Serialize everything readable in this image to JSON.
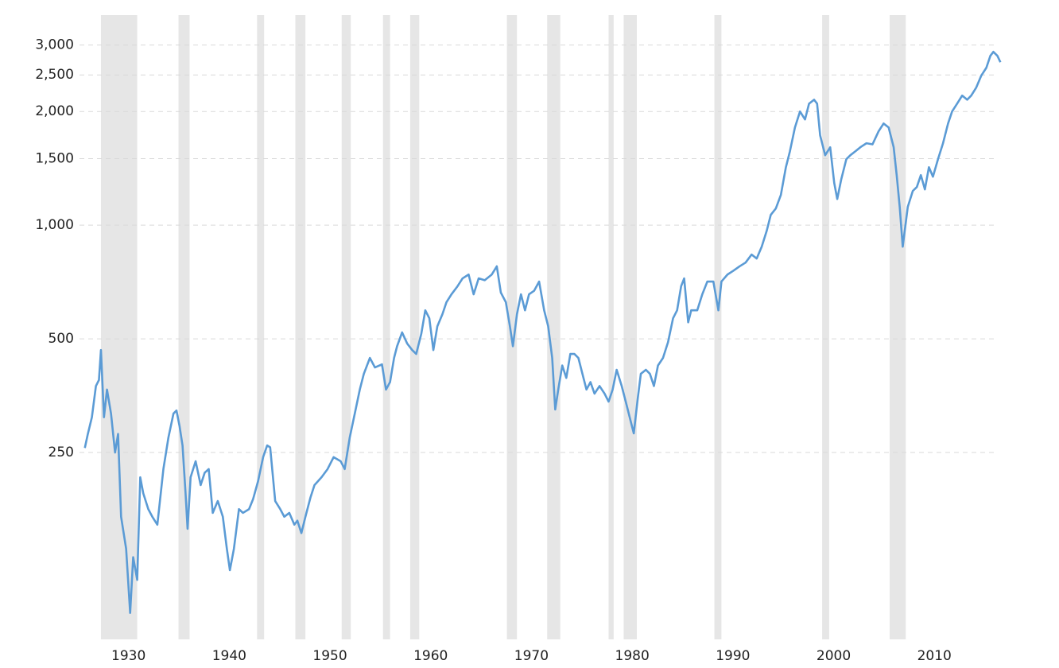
{
  "chart_data": {
    "type": "line",
    "log_scale": true,
    "grid": true,
    "color": "#5b9bd5",
    "band_color": "#e6e6e6",
    "xlim": [
      1928,
      2019
    ],
    "xticks": [
      1930,
      1940,
      1950,
      1960,
      1970,
      1980,
      1990,
      2000,
      2010
    ],
    "ylim": [
      80,
      3600
    ],
    "yticks": [
      250,
      500,
      {
        "value": 1000,
        "label": "1,000"
      },
      {
        "value": 1500,
        "label": "1,500"
      },
      {
        "value": 2000,
        "label": "2,000"
      },
      {
        "value": 2500,
        "label": "2,500"
      },
      {
        "value": 3000,
        "label": "3,000"
      }
    ],
    "recession_bands": [
      [
        1929.6,
        1933.2
      ],
      [
        1937.3,
        1938.4
      ],
      [
        1945.1,
        1945.8
      ],
      [
        1948.9,
        1949.9
      ],
      [
        1953.5,
        1954.4
      ],
      [
        1957.6,
        1958.3
      ],
      [
        1960.3,
        1961.2
      ],
      [
        1969.9,
        1970.9
      ],
      [
        1973.9,
        1975.2
      ],
      [
        1980.0,
        1980.5
      ],
      [
        1981.5,
        1982.8
      ],
      [
        1990.5,
        1991.2
      ],
      [
        2001.2,
        2001.9
      ],
      [
        2007.9,
        2009.5
      ]
    ],
    "x": [
      1928.0,
      1928.3,
      1928.7,
      1929.1,
      1929.4,
      1929.6,
      1929.9,
      1930.2,
      1930.6,
      1931.0,
      1931.3,
      1931.6,
      1932.1,
      1932.5,
      1932.8,
      1933.2,
      1933.5,
      1933.8,
      1934.3,
      1934.7,
      1935.2,
      1935.8,
      1936.3,
      1936.8,
      1937.1,
      1937.4,
      1937.7,
      1938.0,
      1938.2,
      1938.5,
      1939.0,
      1939.5,
      1939.9,
      1940.3,
      1940.7,
      1941.2,
      1941.7,
      1942.1,
      1942.4,
      1942.8,
      1943.3,
      1943.7,
      1944.3,
      1944.7,
      1945.2,
      1945.7,
      1946.1,
      1946.4,
      1946.9,
      1947.4,
      1947.8,
      1948.3,
      1948.8,
      1949.1,
      1949.5,
      1949.9,
      1950.4,
      1950.8,
      1951.5,
      1952.1,
      1952.7,
      1953.4,
      1953.8,
      1954.3,
      1954.8,
      1955.3,
      1955.7,
      1956.3,
      1956.8,
      1957.5,
      1957.9,
      1958.3,
      1958.7,
      1959.0,
      1959.5,
      1960.0,
      1960.5,
      1960.9,
      1961.4,
      1961.8,
      1962.2,
      1962.6,
      1963.0,
      1963.5,
      1963.9,
      1964.4,
      1965.0,
      1965.5,
      1966.1,
      1966.6,
      1967.1,
      1967.7,
      1968.4,
      1968.9,
      1969.3,
      1969.8,
      1970.2,
      1970.5,
      1970.9,
      1971.3,
      1971.7,
      1972.1,
      1972.6,
      1973.1,
      1973.6,
      1974.0,
      1974.4,
      1974.7,
      1975.0,
      1975.4,
      1975.8,
      1976.2,
      1976.6,
      1977.0,
      1977.4,
      1977.8,
      1978.2,
      1978.6,
      1979.1,
      1979.6,
      1980.0,
      1980.4,
      1980.8,
      1981.3,
      1981.8,
      1982.2,
      1982.5,
      1982.9,
      1983.2,
      1983.7,
      1984.1,
      1984.5,
      1984.9,
      1985.4,
      1985.9,
      1986.4,
      1986.8,
      1987.2,
      1987.5,
      1987.9,
      1988.2,
      1988.8,
      1989.3,
      1989.8,
      1990.4,
      1990.9,
      1991.2,
      1991.8,
      1992.4,
      1993.0,
      1993.6,
      1994.2,
      1994.7,
      1995.2,
      1995.7,
      1996.1,
      1996.6,
      1997.1,
      1997.6,
      1998.0,
      1998.5,
      1999.0,
      1999.5,
      1999.9,
      2000.4,
      2000.7,
      2001.0,
      2001.5,
      2002.0,
      2002.4,
      2002.7,
      2003.1,
      2003.6,
      2004.0,
      2004.5,
      2005.0,
      2005.6,
      2006.2,
      2006.8,
      2007.3,
      2007.8,
      2008.3,
      2008.6,
      2008.9,
      2009.2,
      2009.4,
      2009.7,
      2010.2,
      2010.6,
      2011.0,
      2011.4,
      2011.8,
      2012.2,
      2012.7,
      2013.2,
      2013.7,
      2014.1,
      2014.6,
      2015.1,
      2015.6,
      2016.0,
      2016.5,
      2017.0,
      2017.5,
      2017.9,
      2018.2,
      2018.6,
      2018.9
    ],
    "values": [
      257,
      280,
      310,
      375,
      389,
      467,
      310,
      367,
      317,
      250,
      280,
      169,
      139,
      94,
      132,
      115,
      215,
      195,
      177,
      169,
      161,
      226,
      274,
      317,
      323,
      294,
      261,
      195,
      157,
      215,
      237,
      205,
      221,
      226,
      173,
      186,
      169,
      139,
      122,
      139,
      177,
      173,
      177,
      188,
      210,
      243,
      261,
      258,
      186,
      177,
      169,
      173,
      161,
      165,
      153,
      169,
      190,
      205,
      215,
      226,
      243,
      237,
      226,
      274,
      317,
      367,
      404,
      445,
      420,
      428,
      367,
      384,
      445,
      478,
      520,
      486,
      467,
      456,
      515,
      595,
      567,
      467,
      540,
      581,
      625,
      656,
      689,
      723,
      740,
      656,
      723,
      715,
      740,
      778,
      663,
      625,
      540,
      478,
      581,
      656,
      595,
      656,
      670,
      709,
      595,
      540,
      445,
      325,
      367,
      425,
      394,
      456,
      456,
      445,
      404,
      367,
      384,
      358,
      375,
      358,
      341,
      367,
      414,
      375,
      333,
      302,
      281,
      349,
      404,
      414,
      404,
      375,
      425,
      445,
      490,
      567,
      595,
      689,
      723,
      553,
      595,
      595,
      656,
      709,
      709,
      595,
      709,
      740,
      758,
      778,
      796,
      836,
      816,
      877,
      967,
      1065,
      1107,
      1202,
      1424,
      1569,
      1815,
      2000,
      1906,
      2098,
      2149,
      2098,
      1729,
      1532,
      1608,
      1293,
      1173,
      1324,
      1495,
      1532,
      1569,
      1609,
      1648,
      1637,
      1772,
      1859,
      1815,
      1609,
      1357,
      1118,
      877,
      967,
      1118,
      1232,
      1262,
      1357,
      1244,
      1424,
      1344,
      1495,
      1648,
      1859,
      2000,
      2098,
      2204,
      2149,
      2204,
      2315,
      2490,
      2611,
      2809,
      2878,
      2809,
      2701
    ]
  }
}
